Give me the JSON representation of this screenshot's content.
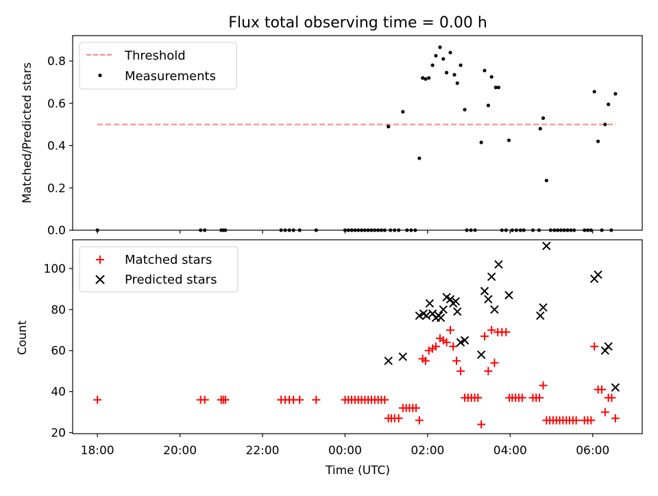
{
  "chart_data": [
    {
      "type": "scatter",
      "title": "Flux total observing time = 0.00 h",
      "xlabel": "",
      "ylabel": "Matched/Predicted stars",
      "xlim": [
        17.4,
        31.2
      ],
      "ylim": [
        0,
        0.92
      ],
      "yticks": [
        0.0,
        0.2,
        0.4,
        0.6,
        0.8
      ],
      "ytick_labels": [
        "0.0",
        "0.2",
        "0.4",
        "0.6",
        "0.8"
      ],
      "legend": {
        "placement": "top-left",
        "threshold_label": "Threshold",
        "measurements_label": "Measurements"
      },
      "threshold": {
        "name": "Threshold",
        "value": 0.5,
        "x_start": 18.0,
        "x_end": 30.57,
        "color": "#ff8080"
      },
      "measurements": {
        "name": "Measurements",
        "color": "#000000",
        "points": [
          [
            18.0,
            0.0
          ],
          [
            20.5,
            0.0
          ],
          [
            20.6,
            0.0
          ],
          [
            21.0,
            0.0
          ],
          [
            21.05,
            0.0
          ],
          [
            21.1,
            0.0
          ],
          [
            22.45,
            0.0
          ],
          [
            22.55,
            0.0
          ],
          [
            22.65,
            0.0
          ],
          [
            22.75,
            0.0
          ],
          [
            22.9,
            0.0
          ],
          [
            23.3,
            0.0
          ],
          [
            24.0,
            0.0
          ],
          [
            24.08,
            0.0
          ],
          [
            24.16,
            0.0
          ],
          [
            24.24,
            0.0
          ],
          [
            24.32,
            0.0
          ],
          [
            24.4,
            0.0
          ],
          [
            24.48,
            0.0
          ],
          [
            24.56,
            0.0
          ],
          [
            24.64,
            0.0
          ],
          [
            24.72,
            0.0
          ],
          [
            24.8,
            0.0
          ],
          [
            24.88,
            0.0
          ],
          [
            24.96,
            0.0
          ],
          [
            25.05,
            0.49
          ],
          [
            25.1,
            0.0
          ],
          [
            25.2,
            0.0
          ],
          [
            25.3,
            0.0
          ],
          [
            25.4,
            0.56
          ],
          [
            25.5,
            0.0
          ],
          [
            25.6,
            0.0
          ],
          [
            25.7,
            0.0
          ],
          [
            25.8,
            0.34
          ],
          [
            25.88,
            0.72
          ],
          [
            25.95,
            0.715
          ],
          [
            26.03,
            0.72
          ],
          [
            26.12,
            0.78
          ],
          [
            26.2,
            0.825
          ],
          [
            26.3,
            0.865
          ],
          [
            26.38,
            0.81
          ],
          [
            26.46,
            0.745
          ],
          [
            26.55,
            0.84
          ],
          [
            26.65,
            0.735
          ],
          [
            26.72,
            0.695
          ],
          [
            26.8,
            0.78
          ],
          [
            26.9,
            0.57
          ],
          [
            26.95,
            0.0
          ],
          [
            27.05,
            0.0
          ],
          [
            27.15,
            0.0
          ],
          [
            27.3,
            0.415
          ],
          [
            27.38,
            0.755
          ],
          [
            27.47,
            0.59
          ],
          [
            27.55,
            0.725
          ],
          [
            27.65,
            0.675
          ],
          [
            27.72,
            0.675
          ],
          [
            27.8,
            0.0
          ],
          [
            27.9,
            0.0
          ],
          [
            27.97,
            0.425
          ],
          [
            28.05,
            0.0
          ],
          [
            28.15,
            0.0
          ],
          [
            28.25,
            0.0
          ],
          [
            28.33,
            0.0
          ],
          [
            28.55,
            0.0
          ],
          [
            28.7,
            0.0
          ],
          [
            28.73,
            0.48
          ],
          [
            28.8,
            0.53
          ],
          [
            28.88,
            0.235
          ],
          [
            28.98,
            0.0
          ],
          [
            29.07,
            0.0
          ],
          [
            29.15,
            0.0
          ],
          [
            29.23,
            0.0
          ],
          [
            29.31,
            0.0
          ],
          [
            29.39,
            0.0
          ],
          [
            29.47,
            0.0
          ],
          [
            29.55,
            0.0
          ],
          [
            29.8,
            0.0
          ],
          [
            29.88,
            0.0
          ],
          [
            29.96,
            0.0
          ],
          [
            30.04,
            0.655
          ],
          [
            30.13,
            0.42
          ],
          [
            30.22,
            0.0
          ],
          [
            30.3,
            0.5
          ],
          [
            30.38,
            0.595
          ],
          [
            30.45,
            0.0
          ],
          [
            30.55,
            0.645
          ]
        ]
      }
    },
    {
      "type": "scatter",
      "title": "",
      "xlabel": "Time (UTC)",
      "ylabel": "Count",
      "xlim": [
        17.4,
        31.2
      ],
      "ylim": [
        19.5,
        114
      ],
      "yticks": [
        20,
        40,
        60,
        80,
        100
      ],
      "ytick_labels": [
        "20",
        "40",
        "60",
        "80",
        "100"
      ],
      "xticks": [
        18,
        20,
        22,
        24,
        26,
        28,
        30
      ],
      "xtick_labels": [
        "18:00",
        "20:00",
        "22:00",
        "00:00",
        "02:00",
        "04:00",
        "06:00"
      ],
      "legend": {
        "placement": "top-left",
        "matched_label": "Matched stars",
        "predicted_label": "Predicted stars"
      },
      "matched": {
        "name": "Matched stars",
        "color": "#ff0000",
        "points": [
          [
            18.0,
            36
          ],
          [
            20.5,
            36
          ],
          [
            20.6,
            36
          ],
          [
            21.0,
            36
          ],
          [
            21.05,
            36
          ],
          [
            21.1,
            36
          ],
          [
            22.45,
            36
          ],
          [
            22.55,
            36
          ],
          [
            22.65,
            36
          ],
          [
            22.75,
            36
          ],
          [
            22.9,
            36
          ],
          [
            23.3,
            36
          ],
          [
            24.0,
            36
          ],
          [
            24.08,
            36
          ],
          [
            24.16,
            36
          ],
          [
            24.24,
            36
          ],
          [
            24.32,
            36
          ],
          [
            24.4,
            36
          ],
          [
            24.48,
            36
          ],
          [
            24.56,
            36
          ],
          [
            24.64,
            36
          ],
          [
            24.72,
            36
          ],
          [
            24.8,
            36
          ],
          [
            24.88,
            36
          ],
          [
            24.96,
            36
          ],
          [
            25.05,
            27
          ],
          [
            25.12,
            27
          ],
          [
            25.2,
            27
          ],
          [
            25.3,
            27
          ],
          [
            25.4,
            32
          ],
          [
            25.48,
            32
          ],
          [
            25.56,
            32
          ],
          [
            25.64,
            32
          ],
          [
            25.72,
            32
          ],
          [
            25.8,
            26
          ],
          [
            25.88,
            56
          ],
          [
            25.95,
            55
          ],
          [
            26.03,
            60
          ],
          [
            26.12,
            61
          ],
          [
            26.2,
            62
          ],
          [
            26.3,
            66
          ],
          [
            26.38,
            65
          ],
          [
            26.46,
            64
          ],
          [
            26.55,
            70
          ],
          [
            26.62,
            62
          ],
          [
            26.7,
            55
          ],
          [
            26.8,
            50
          ],
          [
            26.9,
            37
          ],
          [
            26.98,
            37
          ],
          [
            27.06,
            37
          ],
          [
            27.14,
            37
          ],
          [
            27.22,
            37
          ],
          [
            27.3,
            24
          ],
          [
            27.38,
            67
          ],
          [
            27.47,
            50
          ],
          [
            27.55,
            70
          ],
          [
            27.62,
            54
          ],
          [
            27.7,
            69
          ],
          [
            27.8,
            69
          ],
          [
            27.9,
            69
          ],
          [
            27.98,
            37
          ],
          [
            28.05,
            37
          ],
          [
            28.13,
            37
          ],
          [
            28.21,
            37
          ],
          [
            28.29,
            37
          ],
          [
            28.55,
            37
          ],
          [
            28.63,
            37
          ],
          [
            28.71,
            37
          ],
          [
            28.8,
            43
          ],
          [
            28.88,
            26
          ],
          [
            28.96,
            26
          ],
          [
            29.04,
            26
          ],
          [
            29.12,
            26
          ],
          [
            29.2,
            26
          ],
          [
            29.28,
            26
          ],
          [
            29.36,
            26
          ],
          [
            29.44,
            26
          ],
          [
            29.52,
            26
          ],
          [
            29.6,
            26
          ],
          [
            29.8,
            26
          ],
          [
            29.88,
            26
          ],
          [
            29.96,
            26
          ],
          [
            30.04,
            62
          ],
          [
            30.13,
            41
          ],
          [
            30.22,
            41
          ],
          [
            30.3,
            30
          ],
          [
            30.38,
            37
          ],
          [
            30.46,
            37
          ],
          [
            30.55,
            27
          ]
        ]
      },
      "predicted": {
        "name": "Predicted stars",
        "color": "#000000",
        "points": [
          [
            25.05,
            55
          ],
          [
            25.4,
            57
          ],
          [
            25.8,
            77
          ],
          [
            25.9,
            78
          ],
          [
            25.97,
            77
          ],
          [
            26.05,
            83
          ],
          [
            26.12,
            78
          ],
          [
            26.2,
            76
          ],
          [
            26.27,
            77
          ],
          [
            26.32,
            76
          ],
          [
            26.38,
            80
          ],
          [
            26.46,
            86
          ],
          [
            26.55,
            85
          ],
          [
            26.62,
            83
          ],
          [
            26.68,
            84
          ],
          [
            26.72,
            79
          ],
          [
            26.8,
            64
          ],
          [
            26.9,
            65
          ],
          [
            27.3,
            58
          ],
          [
            27.38,
            89
          ],
          [
            27.47,
            85
          ],
          [
            27.55,
            96
          ],
          [
            27.62,
            80
          ],
          [
            27.72,
            102
          ],
          [
            27.97,
            87
          ],
          [
            28.73,
            77
          ],
          [
            28.8,
            81
          ],
          [
            28.88,
            111
          ],
          [
            30.04,
            95
          ],
          [
            30.13,
            97
          ],
          [
            30.3,
            60
          ],
          [
            30.38,
            62
          ],
          [
            30.55,
            42
          ]
        ]
      }
    }
  ]
}
